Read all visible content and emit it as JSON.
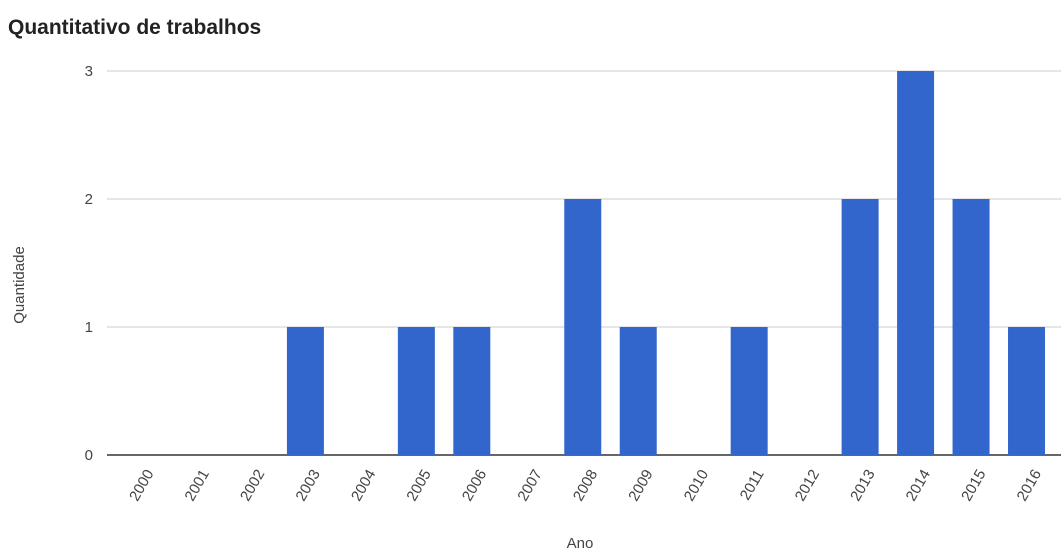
{
  "chart_data": {
    "type": "bar",
    "title": "Quantitativo de trabalhos",
    "xlabel": "Ano",
    "ylabel": "Quantidade",
    "categories": [
      "2000",
      "2001",
      "2002",
      "2003",
      "2004",
      "2005",
      "2006",
      "2007",
      "2008",
      "2009",
      "2010",
      "2011",
      "2012",
      "2013",
      "2014",
      "2015",
      "2016"
    ],
    "values": [
      0,
      0,
      0,
      1,
      0,
      1,
      1,
      0,
      2,
      1,
      0,
      1,
      0,
      2,
      3,
      2,
      1
    ],
    "ylim": [
      0,
      3
    ],
    "yticks": [
      0,
      1,
      2,
      3
    ],
    "grid": true,
    "legend": "none",
    "bar_color": "#3366cc",
    "grid_color": "#cccccc",
    "baseline_color": "#333333"
  }
}
